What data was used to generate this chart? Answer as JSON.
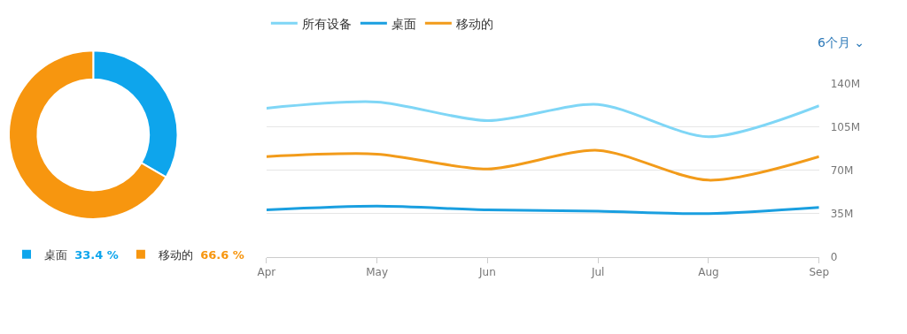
{
  "chart_data": [
    {
      "type": "donut",
      "categories": [
        "桌面",
        "移动的"
      ],
      "values": [
        33.4,
        66.6
      ],
      "colors": [
        "#0ea5ec",
        "#f7960f"
      ],
      "value_labels": [
        "33.4 %",
        "66.6 %"
      ],
      "legend": "bottom"
    },
    {
      "type": "line",
      "categories": [
        "Apr",
        "May",
        "Jun",
        "Jul",
        "Aug",
        "Sep"
      ],
      "series": [
        {
          "name": "所有设备",
          "color": "#7fd6f6",
          "values": [
            120,
            125,
            110,
            123,
            97,
            122
          ]
        },
        {
          "name": "桌面",
          "color": "#1a9fe0",
          "values": [
            38,
            41,
            38,
            37,
            35,
            40
          ]
        },
        {
          "name": "移动的",
          "color": "#f29b1a",
          "values": [
            81,
            83,
            71,
            86,
            62,
            81
          ]
        }
      ],
      "ylim": [
        0,
        140
      ],
      "yticks": [
        {
          "value": 0,
          "label": "0"
        },
        {
          "value": 35,
          "label": "35M"
        },
        {
          "value": 70,
          "label": "70M"
        },
        {
          "value": 105,
          "label": "105M"
        },
        {
          "value": 140,
          "label": "140M"
        }
      ],
      "grid": "y",
      "legend": "top left",
      "marker": "none",
      "line_style": "solid",
      "annotations": [
        "6个月 ⌄"
      ]
    }
  ]
}
